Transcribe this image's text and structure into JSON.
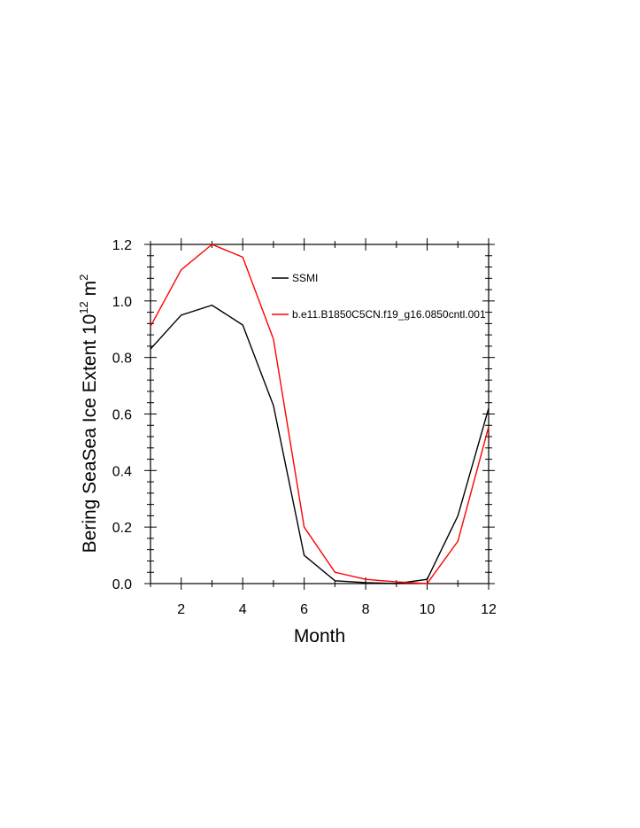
{
  "chart_data": {
    "type": "line",
    "xlabel": "Month",
    "ylabel": "Bering SeaSea Ice Extent 10",
    "ylabel_exp": "12",
    "ylabel_unit": " m",
    "ylabel_unit_exp": "2",
    "xlim": [
      1,
      12
    ],
    "ylim": [
      0,
      1.2
    ],
    "x_ticks": [
      2,
      4,
      6,
      8,
      10,
      12
    ],
    "y_ticks": [
      0.0,
      0.2,
      0.4,
      0.6,
      0.8,
      1.0,
      1.2
    ],
    "x_tick_labels": [
      "2",
      "4",
      "6",
      "8",
      "10",
      "12"
    ],
    "y_tick_labels": [
      "0.0",
      "0.2",
      "0.4",
      "0.6",
      "0.8",
      "1.0",
      "1.2"
    ],
    "grid": false,
    "legend_position": "top-right inside",
    "x": [
      1,
      2,
      3,
      4,
      5,
      6,
      7,
      8,
      9,
      10,
      11,
      12
    ],
    "series": [
      {
        "name": "SSMI",
        "color": "#000000",
        "values": [
          0.83,
          0.95,
          0.985,
          0.915,
          0.63,
          0.1,
          0.01,
          0.003,
          0.0,
          0.015,
          0.24,
          0.62
        ]
      },
      {
        "name": "b.e11.B1850C5CN.f19_g16.0850cntl.001",
        "color": "#ff0000",
        "values": [
          0.91,
          1.11,
          1.2,
          1.155,
          0.865,
          0.2,
          0.04,
          0.015,
          0.006,
          0.0,
          0.15,
          0.555
        ]
      }
    ]
  }
}
